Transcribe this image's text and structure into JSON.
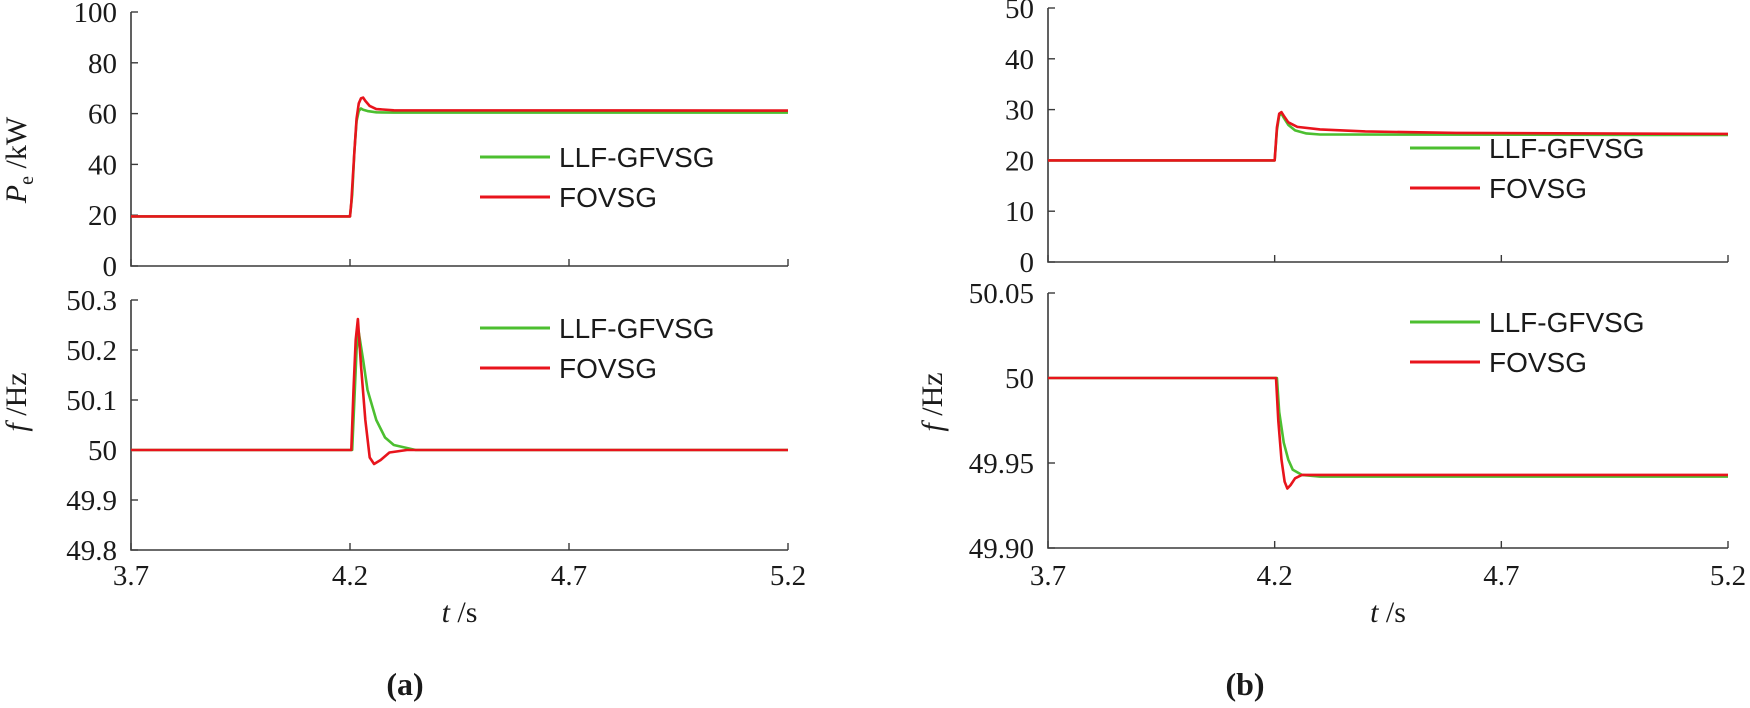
{
  "colors": {
    "series_green": "#4cbf30",
    "series_red": "#e8141c",
    "axis": "#3a3a3a",
    "text": "#1a1a1a"
  },
  "panels": [
    {
      "label": "(a)"
    },
    {
      "label": "(b)"
    }
  ],
  "chart_data": [
    {
      "type": "line",
      "panel": "(a)",
      "ylabel_main": "P",
      "ylabel_sub": "e",
      "ylabel_unit": "/kW",
      "xlabel_main": "t",
      "xlabel_unit": "/s",
      "x_ticks": [
        "3.7",
        "4.2",
        "4.7",
        "5.2"
      ],
      "y_ticks": [
        "0",
        "20",
        "40",
        "60",
        "80",
        "100"
      ],
      "xlim": [
        3.7,
        5.2
      ],
      "ylim": [
        0,
        100
      ],
      "x_axis_labels_shown": false,
      "legend": "right",
      "series": [
        {
          "name": "LLF-GFVSG",
          "color": "#4cbf30",
          "points": [
            [
              3.7,
              19.5
            ],
            [
              4.2,
              19.5
            ],
            [
              4.205,
              28
            ],
            [
              4.21,
              45
            ],
            [
              4.215,
              57
            ],
            [
              4.22,
              61
            ],
            [
              4.225,
              62
            ],
            [
              4.23,
              61.5
            ],
            [
              4.24,
              61
            ],
            [
              4.26,
              60.5
            ],
            [
              4.3,
              60.4
            ],
            [
              5.2,
              60.4
            ]
          ]
        },
        {
          "name": "FOVSG",
          "color": "#e8141c",
          "points": [
            [
              3.7,
              19.5
            ],
            [
              4.2,
              19.5
            ],
            [
              4.203,
              25
            ],
            [
              4.21,
              45
            ],
            [
              4.215,
              58
            ],
            [
              4.22,
              64
            ],
            [
              4.225,
              66
            ],
            [
              4.23,
              66.3
            ],
            [
              4.235,
              65
            ],
            [
              4.245,
              63
            ],
            [
              4.26,
              61.8
            ],
            [
              4.3,
              61.3
            ],
            [
              5.2,
              61.2
            ]
          ]
        }
      ]
    },
    {
      "type": "line",
      "panel": "(a)",
      "ylabel_main": "f",
      "ylabel_unit": "/Hz",
      "xlabel_main": "t",
      "xlabel_unit": "/s",
      "x_ticks": [
        "3.7",
        "4.2",
        "4.7",
        "5.2"
      ],
      "y_ticks": [
        "49.8",
        "49.9",
        "50",
        "50.1",
        "50.2",
        "50.3"
      ],
      "xlim": [
        3.7,
        5.2
      ],
      "ylim": [
        49.8,
        50.3
      ],
      "x_axis_labels_shown": true,
      "legend": "top-right",
      "series": [
        {
          "name": "LLF-GFVSG",
          "color": "#4cbf30",
          "points": [
            [
              3.7,
              50.0
            ],
            [
              4.205,
              50.0
            ],
            [
              4.21,
              50.1
            ],
            [
              4.215,
              50.2
            ],
            [
              4.22,
              50.235
            ],
            [
              4.23,
              50.18
            ],
            [
              4.24,
              50.12
            ],
            [
              4.26,
              50.06
            ],
            [
              4.28,
              50.025
            ],
            [
              4.3,
              50.01
            ],
            [
              4.35,
              50.0
            ],
            [
              5.2,
              50.0
            ]
          ]
        },
        {
          "name": "FOVSG",
          "color": "#e8141c",
          "points": [
            [
              3.7,
              50.0
            ],
            [
              4.203,
              50.0
            ],
            [
              4.208,
              50.12
            ],
            [
              4.213,
              50.22
            ],
            [
              4.218,
              50.262
            ],
            [
              4.225,
              50.17
            ],
            [
              4.235,
              50.06
            ],
            [
              4.245,
              49.985
            ],
            [
              4.255,
              49.972
            ],
            [
              4.27,
              49.98
            ],
            [
              4.29,
              49.995
            ],
            [
              4.33,
              50.0
            ],
            [
              5.2,
              50.0
            ]
          ]
        }
      ]
    },
    {
      "type": "line",
      "panel": "(b)",
      "ylabel_main": "",
      "ylabel_unit": "",
      "xlabel_main": "t",
      "xlabel_unit": "/s",
      "x_ticks": [
        "3.7",
        "4.2",
        "4.7",
        "5.2"
      ],
      "y_ticks": [
        "0",
        "10",
        "20",
        "30",
        "40",
        "50"
      ],
      "xlim": [
        3.7,
        5.2
      ],
      "ylim": [
        0,
        50
      ],
      "x_axis_labels_shown": false,
      "legend": "right",
      "series": [
        {
          "name": "LLF-GFVSG",
          "color": "#4cbf30",
          "points": [
            [
              3.7,
              20.0
            ],
            [
              4.2,
              20.0
            ],
            [
              4.205,
              26
            ],
            [
              4.21,
              28.8
            ],
            [
              4.215,
              29.2
            ],
            [
              4.22,
              28.4
            ],
            [
              4.23,
              27
            ],
            [
              4.245,
              25.9
            ],
            [
              4.27,
              25.3
            ],
            [
              4.3,
              25.1
            ],
            [
              5.2,
              25.0
            ]
          ]
        },
        {
          "name": "FOVSG",
          "color": "#e8141c",
          "points": [
            [
              3.7,
              20.0
            ],
            [
              4.2,
              20.0
            ],
            [
              4.205,
              26.5
            ],
            [
              4.21,
              29.2
            ],
            [
              4.215,
              29.5
            ],
            [
              4.22,
              28.8
            ],
            [
              4.23,
              27.5
            ],
            [
              4.25,
              26.6
            ],
            [
              4.3,
              26.1
            ],
            [
              4.4,
              25.7
            ],
            [
              4.6,
              25.4
            ],
            [
              5.2,
              25.2
            ]
          ]
        }
      ]
    },
    {
      "type": "line",
      "panel": "(b)",
      "ylabel_main": "f",
      "ylabel_unit": "/Hz",
      "xlabel_main": "t",
      "xlabel_unit": "/s",
      "x_ticks": [
        "3.7",
        "4.2",
        "4.7",
        "5.2"
      ],
      "y_ticks": [
        "49.90",
        "49.95",
        "50",
        "50.05"
      ],
      "xlim": [
        3.7,
        5.2
      ],
      "ylim": [
        49.9,
        50.05
      ],
      "x_axis_labels_shown": true,
      "legend": "top-right",
      "series": [
        {
          "name": "LLF-GFVSG",
          "color": "#4cbf30",
          "points": [
            [
              3.7,
              50.0
            ],
            [
              4.205,
              50.0
            ],
            [
              4.21,
              49.98
            ],
            [
              4.22,
              49.962
            ],
            [
              4.23,
              49.952
            ],
            [
              4.24,
              49.946
            ],
            [
              4.26,
              49.943
            ],
            [
              4.3,
              49.942
            ],
            [
              5.2,
              49.942
            ]
          ]
        },
        {
          "name": "FOVSG",
          "color": "#e8141c",
          "points": [
            [
              3.7,
              50.0
            ],
            [
              4.203,
              50.0
            ],
            [
              4.208,
              49.975
            ],
            [
              4.215,
              49.952
            ],
            [
              4.222,
              49.939
            ],
            [
              4.228,
              49.935
            ],
            [
              4.235,
              49.937
            ],
            [
              4.245,
              49.941
            ],
            [
              4.26,
              49.943
            ],
            [
              4.3,
              49.943
            ],
            [
              5.2,
              49.943
            ]
          ]
        }
      ]
    }
  ]
}
